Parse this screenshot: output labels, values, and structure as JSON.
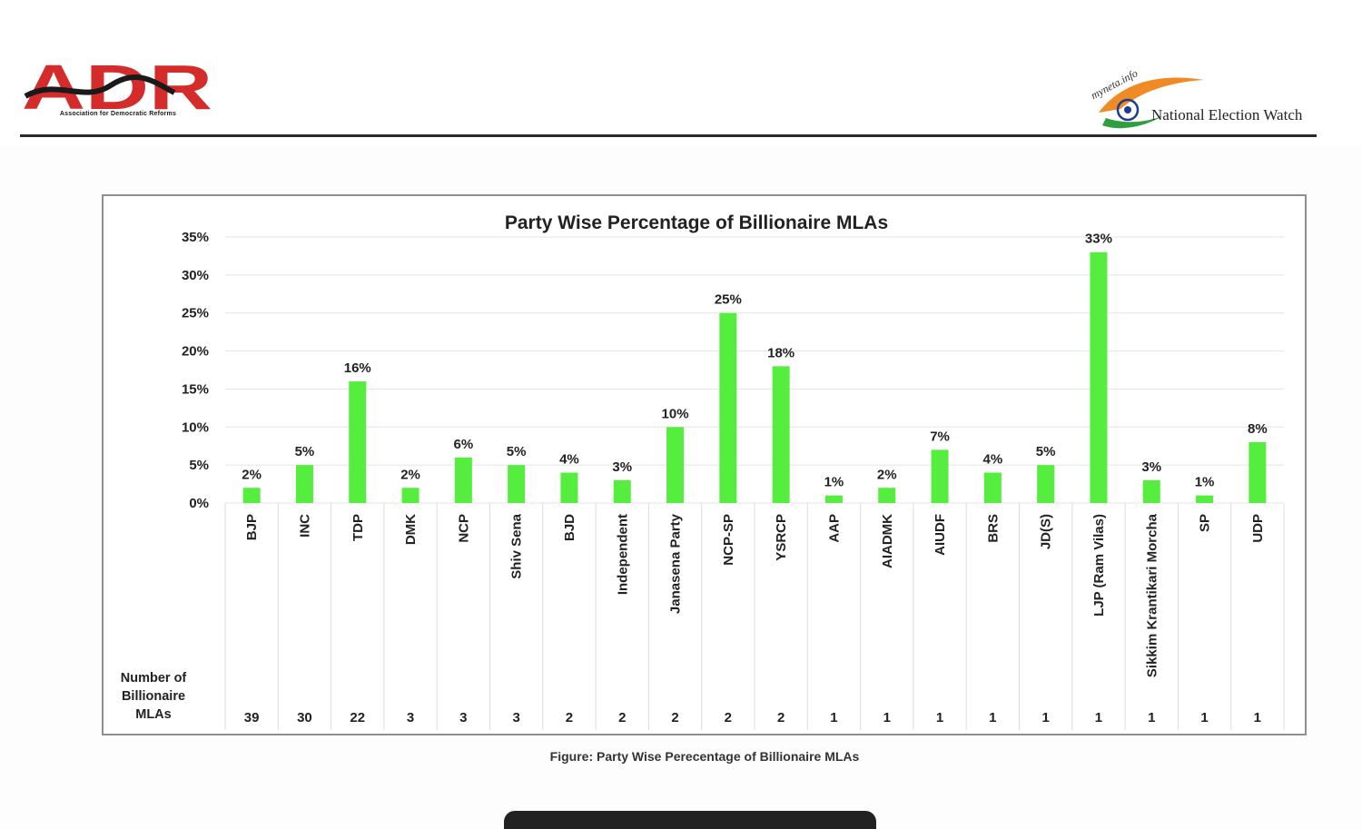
{
  "header": {
    "adr_logo_text": "ADR",
    "adr_tagline": "Association for Democratic Reforms",
    "myneta_text": "myneta.info",
    "new_text": "National Election Watch"
  },
  "colors": {
    "bar": "#55ee3e",
    "adr_red": "#d42b2b",
    "saffron": "#f08a24",
    "green": "#2e9e3e",
    "navy": "#1c3d8f"
  },
  "chart_data": {
    "type": "bar",
    "title": "Party Wise Percentage of Billionaire MLAs",
    "xlabel": "",
    "ylabel": "",
    "ylim": [
      0,
      35
    ],
    "yticks": [
      "0%",
      "5%",
      "10%",
      "15%",
      "20%",
      "25%",
      "30%",
      "35%"
    ],
    "grid": true,
    "categories": [
      "BJP",
      "INC",
      "TDP",
      "DMK",
      "NCP",
      "Shiv Sena",
      "BJD",
      "Independent",
      "Janasena Party",
      "NCP-SP",
      "YSRCP",
      "AAP",
      "AIADMK",
      "AIUDF",
      "BRS",
      "JD(S)",
      "LJP (Ram Vilas)",
      "Sikkim Krantikari Morcha",
      "SP",
      "UDP"
    ],
    "values": [
      2,
      5,
      16,
      2,
      6,
      5,
      4,
      3,
      10,
      25,
      18,
      1,
      2,
      7,
      4,
      5,
      33,
      3,
      1,
      8
    ],
    "data_labels": [
      "2%",
      "5%",
      "16%",
      "2%",
      "6%",
      "5%",
      "4%",
      "3%",
      "10%",
      "25%",
      "18%",
      "1%",
      "2%",
      "7%",
      "4%",
      "5%",
      "33%",
      "3%",
      "1%",
      "8%"
    ],
    "table_row_label": [
      "Number of",
      "Billionaire",
      "MLAs"
    ],
    "table_values": [
      39,
      30,
      22,
      3,
      3,
      3,
      2,
      2,
      2,
      2,
      2,
      1,
      1,
      1,
      1,
      1,
      1,
      1,
      1,
      1
    ]
  },
  "caption": "Figure: Party Wise Perecentage of Billionaire MLAs"
}
